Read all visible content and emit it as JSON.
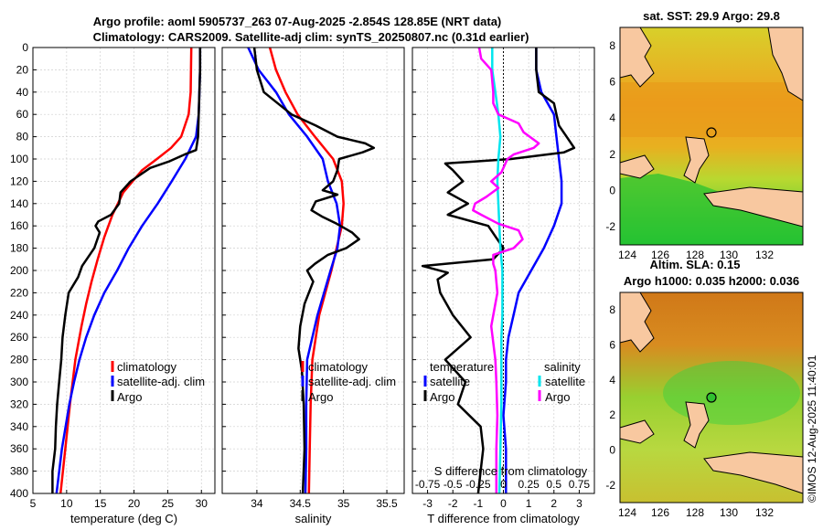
{
  "title": {
    "line1": "Argo profile: aoml 5905737_263 07-Aug-2025 -2.854S 128.85E (NRT data)",
    "line2": "Climatology: CARS2009. Satellite-adj clim: synTS_20250807.nc (0.31d earlier)"
  },
  "side": {
    "sst_title": "sat. SST: 29.9 Argo: 29.8",
    "sla_title1": "Altim. SLA: 0.15",
    "sla_title2": "Argo h1000: 0.035 h2000: 0.036",
    "copyright": "©IMOS 12-Aug-2025 11:40:01",
    "map_x_ticks": [
      "124",
      "126",
      "128",
      "130",
      "132"
    ],
    "sst_y_ticks": [
      "8",
      "6",
      "4",
      "2",
      "0",
      "-2"
    ],
    "sla_y_ticks": [
      "8",
      "6",
      "4",
      "2",
      "0",
      "-2"
    ]
  },
  "colors": {
    "climatology": "#ff0000",
    "satellite": "#0000ff",
    "argo": "#000000",
    "sat_diff": "#00e5ee",
    "argo_diff": "#ff00ff",
    "land": "#f8c8a0"
  },
  "legend": {
    "climatology": "climatology",
    "satellite_adj": "satellite-adj. clim",
    "argo": "Argo",
    "temperature": "temperature",
    "salinity": "salinity",
    "satellite": "satellite"
  },
  "chart_data": [
    {
      "type": "line",
      "xlabel": "temperature (deg C)",
      "xlim": [
        5,
        32
      ],
      "ylim": [
        0,
        400
      ],
      "y_ticks": [
        0,
        20,
        40,
        60,
        80,
        100,
        120,
        140,
        160,
        180,
        200,
        220,
        240,
        260,
        280,
        300,
        320,
        340,
        360,
        380,
        400
      ],
      "x_ticks": [
        5,
        10,
        15,
        20,
        25,
        30
      ],
      "series": [
        {
          "name": "climatology",
          "depth": [
            0,
            40,
            60,
            80,
            90,
            100,
            110,
            130,
            150,
            170,
            190,
            210,
            230,
            250,
            280,
            320,
            360,
            400
          ],
          "values": [
            28.5,
            28.4,
            28.1,
            27,
            25.5,
            23.4,
            21.2,
            18.4,
            16.8,
            15.6,
            14.6,
            13.7,
            12.9,
            12.2,
            11.3,
            10.5,
            9.8,
            9.1
          ]
        },
        {
          "name": "satellite-adj. clim",
          "depth": [
            0,
            20,
            60,
            80,
            100,
            120,
            140,
            160,
            180,
            200,
            220,
            240,
            260,
            280,
            300,
            320,
            360,
            400
          ],
          "values": [
            29.8,
            29.8,
            29.6,
            29.2,
            27.6,
            25.6,
            23.5,
            21.2,
            19.2,
            17.5,
            15.6,
            14.1,
            12.9,
            11.9,
            11.1,
            10.4,
            9.3,
            8.5
          ]
        },
        {
          "name": "Argo",
          "depth": [
            0,
            20,
            60,
            80,
            92,
            96,
            102,
            108,
            120,
            130,
            140,
            150,
            156,
            160,
            166,
            180,
            196,
            206,
            220,
            240,
            260,
            280,
            300,
            320,
            340,
            360,
            380,
            400
          ],
          "values": [
            29.8,
            29.8,
            29.6,
            29.5,
            29.2,
            27.5,
            25.3,
            22.4,
            19.5,
            18,
            17.8,
            16.6,
            14.7,
            14.3,
            14.9,
            14.1,
            12.3,
            11.7,
            10.3,
            9.8,
            9.4,
            9.2,
            8.9,
            8.6,
            8.4,
            8.3,
            7.9,
            7.9
          ]
        }
      ]
    },
    {
      "type": "line",
      "xlabel": "salinity",
      "xlim": [
        33.6,
        35.7
      ],
      "ylim": [
        0,
        400
      ],
      "x_ticks": [
        34,
        34.5,
        35,
        35.5
      ],
      "series": [
        {
          "name": "climatology",
          "depth": [
            0,
            20,
            40,
            60,
            80,
            100,
            120,
            140,
            160,
            200,
            240,
            280,
            320,
            360,
            400
          ],
          "values": [
            34.15,
            34.22,
            34.33,
            34.47,
            34.67,
            34.88,
            34.98,
            35,
            34.98,
            34.86,
            34.72,
            34.64,
            34.62,
            34.61,
            34.6
          ]
        },
        {
          "name": "satellite-adj. clim",
          "depth": [
            0,
            20,
            40,
            60,
            80,
            100,
            120,
            140,
            160,
            180,
            200,
            240,
            280,
            320,
            360,
            400
          ],
          "values": [
            33.9,
            34.02,
            34.22,
            34.37,
            34.58,
            34.76,
            34.82,
            34.92,
            34.96,
            34.93,
            34.85,
            34.7,
            34.58,
            34.57,
            34.57,
            34.56
          ]
        },
        {
          "name": "Argo",
          "depth": [
            0,
            20,
            40,
            60,
            70,
            80,
            86,
            90,
            94,
            100,
            110,
            120,
            128,
            132,
            138,
            146,
            152,
            158,
            166,
            172,
            180,
            186,
            194,
            200,
            210,
            230,
            250,
            270,
            290,
            320,
            360,
            400
          ],
          "values": [
            33.97,
            34.0,
            34.08,
            34.4,
            34.68,
            34.93,
            35.25,
            35.35,
            35.22,
            34.95,
            34.93,
            34.88,
            34.76,
            34.93,
            34.68,
            34.63,
            34.76,
            34.92,
            35.1,
            35.18,
            35.03,
            34.82,
            34.67,
            34.58,
            34.65,
            34.55,
            34.5,
            34.48,
            34.52,
            34.54,
            34.55,
            34.53
          ]
        }
      ]
    },
    {
      "type": "line",
      "xlabel": "T difference from climatology",
      "xlabel2": "S difference from climatology",
      "xlim": [
        -3.6,
        3.6
      ],
      "ylim": [
        0,
        400
      ],
      "x_ticks": [
        -3,
        -2,
        -1,
        0,
        1,
        2,
        3
      ],
      "x2_ticks": [
        "-0.75",
        "-0.5",
        "-0.25",
        "0",
        "0.25",
        "0.5",
        "0.75"
      ],
      "x2_tick_values": [
        -0.75,
        -0.5,
        -0.25,
        0,
        0.25,
        0.5,
        0.75
      ],
      "x2_range": [
        -0.9,
        0.9
      ],
      "series": [
        {
          "name": "temperature satellite",
          "axis": "T",
          "depth": [
            0,
            20,
            40,
            60,
            80,
            100,
            120,
            140,
            160,
            180,
            200,
            220,
            240,
            260,
            280,
            300,
            330,
            360,
            400
          ],
          "values": [
            1.3,
            1.3,
            1.5,
            2.0,
            2.1,
            2.2,
            2.3,
            2.3,
            2.0,
            1.6,
            1.1,
            0.6,
            0.4,
            0.2,
            0.1,
            0.1,
            0.0,
            0.1,
            0.1
          ]
        },
        {
          "name": "temperature Argo",
          "axis": "T",
          "depth": [
            0,
            20,
            40,
            50,
            60,
            70,
            80,
            90,
            94,
            100,
            104,
            110,
            120,
            130,
            140,
            150,
            160,
            170,
            180,
            190,
            196,
            202,
            208,
            220,
            240,
            260,
            280,
            300,
            320,
            340,
            360,
            380,
            400
          ],
          "values": [
            1.3,
            1.3,
            1.4,
            2.0,
            2.1,
            2.2,
            2.5,
            2.8,
            2.4,
            0.3,
            -2.3,
            -2.0,
            -1.6,
            -2.2,
            -1.4,
            -2.2,
            -0.6,
            -0.3,
            0.0,
            -0.4,
            -3.2,
            -2.2,
            -2.6,
            -2.5,
            -2.0,
            -1.3,
            -2.3,
            -1.5,
            -1.8,
            -0.9,
            -0.8,
            -0.9,
            -1.0
          ]
        },
        {
          "name": "salinity satellite",
          "axis": "S",
          "depth": [
            0,
            20,
            40,
            60,
            80,
            100,
            120,
            140,
            160,
            180,
            200,
            220,
            240,
            260,
            280,
            300,
            320,
            360,
            400
          ],
          "values": [
            -0.11,
            -0.11,
            -0.08,
            -0.05,
            -0.03,
            -0.05,
            -0.06,
            -0.05,
            -0.04,
            -0.03,
            -0.01,
            -0.01,
            -0.01,
            -0.02,
            -0.02,
            -0.02,
            -0.02,
            -0.03,
            -0.04
          ]
        },
        {
          "name": "salinity Argo",
          "axis": "S",
          "depth": [
            0,
            10,
            20,
            40,
            50,
            60,
            68,
            76,
            86,
            90,
            96,
            100,
            112,
            120,
            126,
            134,
            140,
            146,
            150,
            158,
            164,
            172,
            180,
            186,
            194,
            200,
            220,
            250,
            280,
            300,
            330,
            360,
            400
          ],
          "values": [
            -0.24,
            -0.22,
            -0.12,
            -0.1,
            -0.1,
            -0.05,
            0.15,
            0.2,
            0.35,
            0.3,
            0.1,
            0.04,
            -0.02,
            -0.12,
            -0.05,
            -0.17,
            -0.28,
            -0.3,
            -0.22,
            -0.05,
            0.15,
            0.19,
            0.1,
            -0.1,
            -0.1,
            -0.08,
            -0.06,
            -0.12,
            -0.08,
            -0.07,
            -0.06,
            -0.07,
            -0.07
          ]
        }
      ]
    }
  ]
}
